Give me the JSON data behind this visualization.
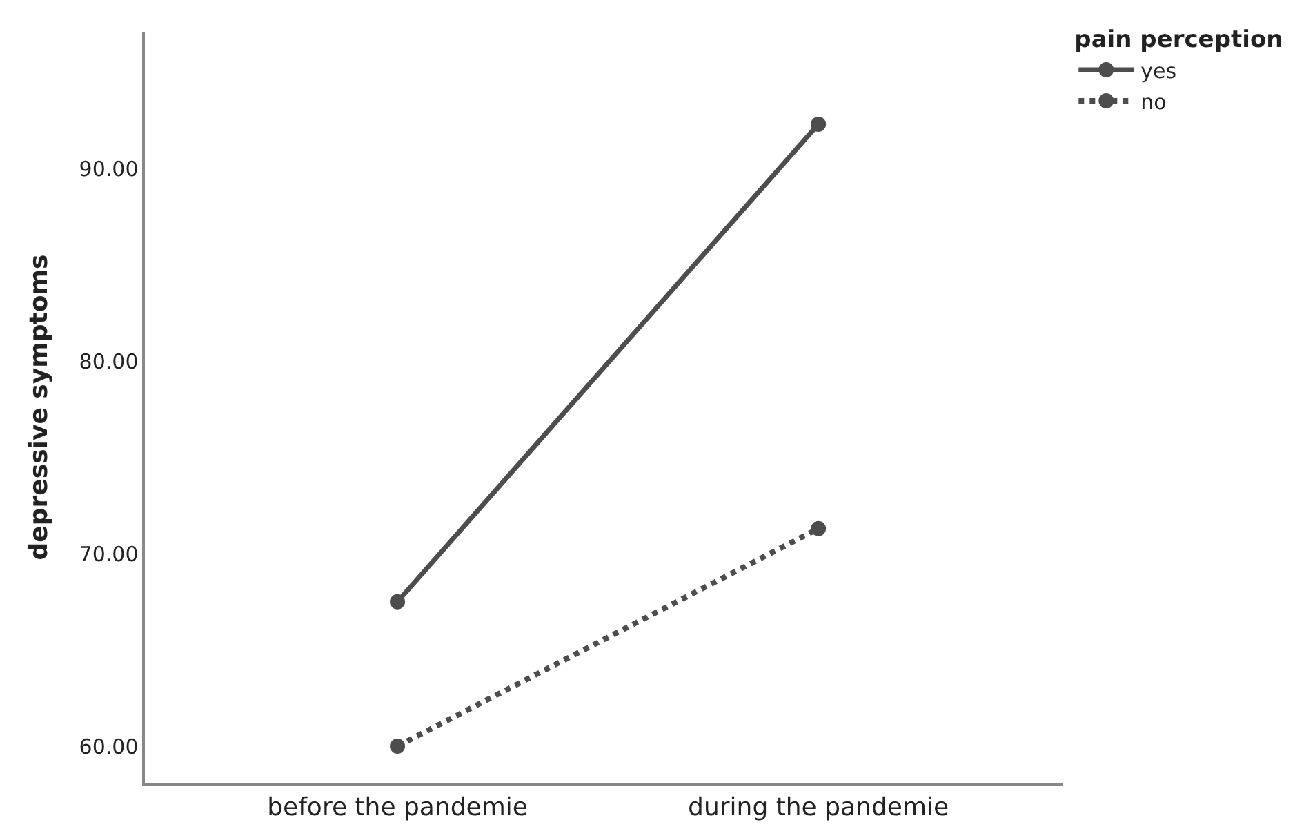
{
  "chart_data": {
    "type": "line",
    "ylabel": "depressive symptoms",
    "legend_title": "pain perception",
    "categories": [
      "before the pandemie",
      "during the pandemie"
    ],
    "series": [
      {
        "name": "yes",
        "color": "#4d4d4d",
        "values": [
          67.5,
          92.3
        ],
        "line_style": "solid"
      },
      {
        "name": "no",
        "color": "#4d4d4d",
        "values": [
          60.0,
          71.3
        ],
        "line_style": "dotted"
      }
    ],
    "ylim": [
      58.1,
      97.1
    ],
    "yticks": [
      {
        "value": 60,
        "label": "60.00"
      },
      {
        "value": 70,
        "label": "70.00"
      },
      {
        "value": 80,
        "label": "80.00"
      },
      {
        "value": 90,
        "label": "90.00"
      }
    ],
    "legend": "top right",
    "marker": "circle"
  }
}
